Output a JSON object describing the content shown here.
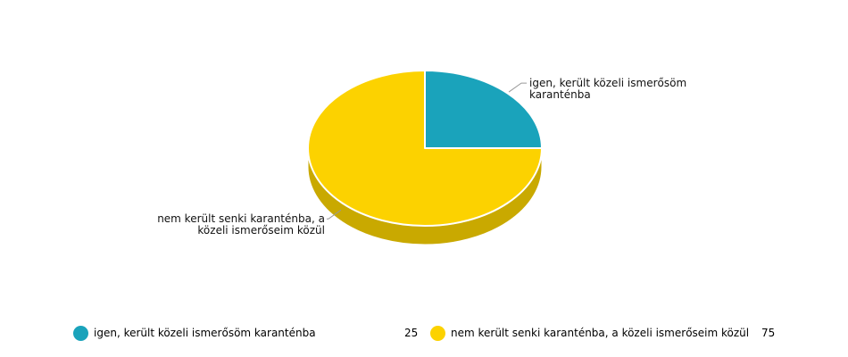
{
  "chart_data": {
    "type": "pie",
    "three_d": true,
    "slices": [
      {
        "label": "igen, került közeli ismerősöm karanténba",
        "label_lines": [
          "igen, került közeli ismerősöm",
          "karanténba"
        ],
        "value": 25,
        "color": "#1aa3bb",
        "side_color": "#138295"
      },
      {
        "label": "nem került senki karanténba, a közeli ismerőseim közül",
        "label_lines": [
          "nem került senki karanténba, a",
          "közeli ismerőseim közül"
        ],
        "value": 75,
        "color": "#fcd200",
        "side_color": "#c9a900"
      }
    ],
    "legend": {
      "placement": "bottom",
      "items": [
        {
          "label": "igen, került közeli ismerősöm karanténba",
          "value": "25",
          "color": "#1aa3bb"
        },
        {
          "label": "nem került senki karanténba, a közeli ismerőseim közül",
          "value": "75",
          "color": "#fcd200"
        }
      ]
    }
  }
}
